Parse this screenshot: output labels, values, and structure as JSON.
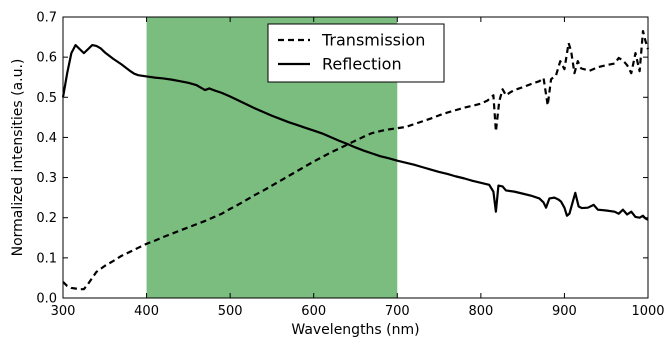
{
  "chart_data": {
    "type": "line",
    "title": "",
    "xlabel": "Wavelengths (nm)",
    "ylabel": "Normalized intensities (a.u.)",
    "xlim": [
      300,
      1000
    ],
    "ylim": [
      0.0,
      0.7
    ],
    "x_ticks": [
      300,
      400,
      500,
      600,
      700,
      800,
      900,
      1000
    ],
    "y_ticks": [
      0.0,
      0.1,
      0.2,
      0.3,
      0.4,
      0.5,
      0.6,
      0.7
    ],
    "x_tick_labels": [
      "300",
      "400",
      "500",
      "600",
      "700",
      "800",
      "900",
      "1000"
    ],
    "y_tick_labels": [
      "0.0",
      "0.1",
      "0.2",
      "0.3",
      "0.4",
      "0.5",
      "0.6",
      "0.7"
    ],
    "grid": false,
    "legend_position": "top-center",
    "shaded_region": {
      "x_start": 400,
      "x_end": 700,
      "color": "#7bbd7e"
    },
    "series": [
      {
        "name": "Transmission",
        "style": "dashed",
        "color": "#000000",
        "points": [
          [
            300,
            0.04
          ],
          [
            305,
            0.03
          ],
          [
            310,
            0.025
          ],
          [
            320,
            0.022
          ],
          [
            325,
            0.022
          ],
          [
            330,
            0.035
          ],
          [
            335,
            0.05
          ],
          [
            340,
            0.065
          ],
          [
            350,
            0.08
          ],
          [
            360,
            0.092
          ],
          [
            370,
            0.105
          ],
          [
            380,
            0.115
          ],
          [
            390,
            0.125
          ],
          [
            400,
            0.135
          ],
          [
            410,
            0.143
          ],
          [
            420,
            0.152
          ],
          [
            430,
            0.16
          ],
          [
            440,
            0.168
          ],
          [
            450,
            0.176
          ],
          [
            460,
            0.184
          ],
          [
            470,
            0.192
          ],
          [
            480,
            0.201
          ],
          [
            490,
            0.21
          ],
          [
            500,
            0.222
          ],
          [
            510,
            0.233
          ],
          [
            520,
            0.245
          ],
          [
            530,
            0.257
          ],
          [
            540,
            0.268
          ],
          [
            550,
            0.28
          ],
          [
            560,
            0.292
          ],
          [
            570,
            0.304
          ],
          [
            580,
            0.316
          ],
          [
            590,
            0.328
          ],
          [
            600,
            0.34
          ],
          [
            610,
            0.351
          ],
          [
            620,
            0.362
          ],
          [
            630,
            0.372
          ],
          [
            640,
            0.382
          ],
          [
            650,
            0.392
          ],
          [
            660,
            0.402
          ],
          [
            670,
            0.411
          ],
          [
            680,
            0.416
          ],
          [
            690,
            0.42
          ],
          [
            700,
            0.423
          ],
          [
            710,
            0.426
          ],
          [
            720,
            0.433
          ],
          [
            730,
            0.44
          ],
          [
            740,
            0.447
          ],
          [
            750,
            0.455
          ],
          [
            760,
            0.462
          ],
          [
            770,
            0.468
          ],
          [
            780,
            0.474
          ],
          [
            790,
            0.479
          ],
          [
            800,
            0.484
          ],
          [
            808,
            0.492
          ],
          [
            815,
            0.505
          ],
          [
            818,
            0.415
          ],
          [
            822,
            0.49
          ],
          [
            826,
            0.52
          ],
          [
            830,
            0.505
          ],
          [
            835,
            0.512
          ],
          [
            840,
            0.518
          ],
          [
            850,
            0.525
          ],
          [
            860,
            0.533
          ],
          [
            870,
            0.54
          ],
          [
            875,
            0.548
          ],
          [
            880,
            0.48
          ],
          [
            884,
            0.545
          ],
          [
            890,
            0.555
          ],
          [
            895,
            0.59
          ],
          [
            900,
            0.57
          ],
          [
            905,
            0.635
          ],
          [
            908,
            0.615
          ],
          [
            912,
            0.56
          ],
          [
            916,
            0.59
          ],
          [
            920,
            0.572
          ],
          [
            930,
            0.566
          ],
          [
            940,
            0.575
          ],
          [
            950,
            0.58
          ],
          [
            960,
            0.584
          ],
          [
            965,
            0.598
          ],
          [
            970,
            0.592
          ],
          [
            975,
            0.58
          ],
          [
            980,
            0.56
          ],
          [
            985,
            0.61
          ],
          [
            990,
            0.565
          ],
          [
            994,
            0.665
          ],
          [
            997,
            0.64
          ],
          [
            1000,
            0.62
          ]
        ]
      },
      {
        "name": "Reflection",
        "style": "solid",
        "color": "#000000",
        "points": [
          [
            300,
            0.5
          ],
          [
            305,
            0.56
          ],
          [
            310,
            0.61
          ],
          [
            315,
            0.63
          ],
          [
            320,
            0.62
          ],
          [
            325,
            0.61
          ],
          [
            330,
            0.62
          ],
          [
            335,
            0.63
          ],
          [
            340,
            0.628
          ],
          [
            345,
            0.622
          ],
          [
            350,
            0.612
          ],
          [
            360,
            0.596
          ],
          [
            370,
            0.582
          ],
          [
            380,
            0.566
          ],
          [
            385,
            0.559
          ],
          [
            390,
            0.555
          ],
          [
            400,
            0.552
          ],
          [
            410,
            0.549
          ],
          [
            420,
            0.547
          ],
          [
            430,
            0.544
          ],
          [
            440,
            0.54
          ],
          [
            450,
            0.536
          ],
          [
            460,
            0.53
          ],
          [
            465,
            0.524
          ],
          [
            470,
            0.518
          ],
          [
            475,
            0.522
          ],
          [
            480,
            0.518
          ],
          [
            490,
            0.511
          ],
          [
            500,
            0.502
          ],
          [
            510,
            0.492
          ],
          [
            520,
            0.482
          ],
          [
            530,
            0.472
          ],
          [
            540,
            0.463
          ],
          [
            550,
            0.454
          ],
          [
            560,
            0.446
          ],
          [
            570,
            0.438
          ],
          [
            580,
            0.431
          ],
          [
            590,
            0.424
          ],
          [
            600,
            0.417
          ],
          [
            610,
            0.41
          ],
          [
            620,
            0.401
          ],
          [
            630,
            0.392
          ],
          [
            640,
            0.384
          ],
          [
            650,
            0.375
          ],
          [
            660,
            0.367
          ],
          [
            670,
            0.36
          ],
          [
            680,
            0.353
          ],
          [
            690,
            0.348
          ],
          [
            700,
            0.342
          ],
          [
            710,
            0.337
          ],
          [
            720,
            0.332
          ],
          [
            730,
            0.326
          ],
          [
            740,
            0.32
          ],
          [
            750,
            0.314
          ],
          [
            760,
            0.309
          ],
          [
            770,
            0.303
          ],
          [
            780,
            0.298
          ],
          [
            790,
            0.292
          ],
          [
            800,
            0.287
          ],
          [
            810,
            0.282
          ],
          [
            815,
            0.265
          ],
          [
            818,
            0.215
          ],
          [
            821,
            0.28
          ],
          [
            826,
            0.278
          ],
          [
            830,
            0.268
          ],
          [
            840,
            0.265
          ],
          [
            850,
            0.26
          ],
          [
            860,
            0.255
          ],
          [
            870,
            0.248
          ],
          [
            875,
            0.238
          ],
          [
            878,
            0.225
          ],
          [
            882,
            0.248
          ],
          [
            888,
            0.25
          ],
          [
            893,
            0.245
          ],
          [
            896,
            0.24
          ],
          [
            900,
            0.225
          ],
          [
            903,
            0.205
          ],
          [
            906,
            0.21
          ],
          [
            910,
            0.24
          ],
          [
            913,
            0.262
          ],
          [
            917,
            0.228
          ],
          [
            921,
            0.224
          ],
          [
            928,
            0.225
          ],
          [
            935,
            0.232
          ],
          [
            940,
            0.22
          ],
          [
            950,
            0.218
          ],
          [
            960,
            0.215
          ],
          [
            965,
            0.21
          ],
          [
            970,
            0.22
          ],
          [
            975,
            0.208
          ],
          [
            980,
            0.215
          ],
          [
            985,
            0.202
          ],
          [
            990,
            0.2
          ],
          [
            994,
            0.205
          ],
          [
            997,
            0.198
          ],
          [
            1000,
            0.195
          ]
        ]
      }
    ]
  }
}
